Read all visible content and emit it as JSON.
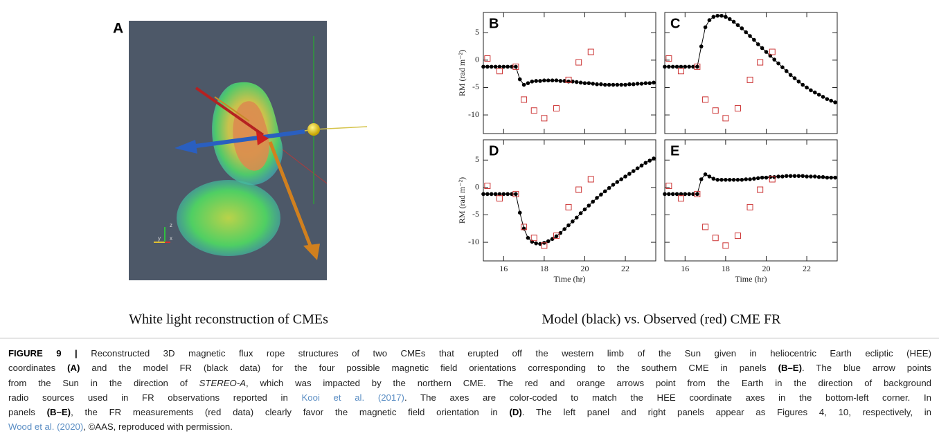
{
  "panel_a": {
    "label": "A",
    "triad": [
      "z",
      "y",
      "x"
    ],
    "subtitle": "White light reconstruction of CMEs"
  },
  "right_subtitle": "Model (black) vs. Observed (red) CME FR",
  "chart_data": [
    {
      "type": "line",
      "label": "B",
      "ylabel": "RM (rad m⁻²)",
      "xlim": [
        15,
        23.5
      ],
      "ylim": [
        -13.4,
        8.7
      ],
      "xticks": [
        16,
        18,
        20,
        22
      ],
      "yticks": [
        5,
        0,
        -5,
        -10
      ],
      "show_xtick_labels": false,
      "show_ytick_labels": true,
      "series": [
        {
          "color": "#000000",
          "marker": "circle",
          "line": true,
          "x": [
            15,
            15.2,
            15.4,
            15.6,
            15.8,
            16,
            16.2,
            16.4,
            16.6,
            16.8,
            17,
            17.2,
            17.4,
            17.6,
            17.8,
            18,
            18.2,
            18.4,
            18.6,
            18.8,
            19,
            19.2,
            19.4,
            19.6,
            19.8,
            20,
            20.2,
            20.4,
            20.6,
            20.8,
            21,
            21.2,
            21.4,
            21.6,
            21.8,
            22,
            22.2,
            22.4,
            22.6,
            22.8,
            23,
            23.2,
            23.4
          ],
          "values": [
            -1.2,
            -1.2,
            -1.2,
            -1.2,
            -1.2,
            -1.2,
            -1.2,
            -1.2,
            -1.2,
            -3.5,
            -4.5,
            -4.2,
            -3.9,
            -3.8,
            -3.8,
            -3.7,
            -3.7,
            -3.7,
            -3.7,
            -3.8,
            -3.8,
            -3.9,
            -3.9,
            -4.0,
            -4.1,
            -4.2,
            -4.2,
            -4.3,
            -4.4,
            -4.4,
            -4.5,
            -4.5,
            -4.5,
            -4.5,
            -4.5,
            -4.5,
            -4.4,
            -4.4,
            -4.3,
            -4.3,
            -4.2,
            -4.2,
            -4.1
          ]
        },
        {
          "color": "#cc3333",
          "marker": "square",
          "line": false,
          "x": [
            15.2,
            15.8,
            16.6,
            17.0,
            17.5,
            18.0,
            18.6,
            19.2,
            19.7,
            20.3
          ],
          "values": [
            0.3,
            -2.0,
            -1.2,
            -7.2,
            -9.2,
            -10.6,
            -8.8,
            -3.6,
            -0.4,
            1.5
          ]
        }
      ]
    },
    {
      "type": "line",
      "label": "C",
      "xlim": [
        15,
        23.5
      ],
      "ylim": [
        -13.4,
        8.7
      ],
      "xticks": [
        16,
        18,
        20,
        22
      ],
      "yticks": [
        5,
        0,
        -5,
        -10
      ],
      "show_xtick_labels": false,
      "show_ytick_labels": false,
      "series": [
        {
          "color": "#000000",
          "marker": "circle",
          "line": true,
          "x": [
            15,
            15.2,
            15.4,
            15.6,
            15.8,
            16,
            16.2,
            16.4,
            16.6,
            16.8,
            17,
            17.2,
            17.4,
            17.6,
            17.8,
            18,
            18.2,
            18.4,
            18.6,
            18.8,
            19,
            19.2,
            19.4,
            19.6,
            19.8,
            20,
            20.2,
            20.4,
            20.6,
            20.8,
            21,
            21.2,
            21.4,
            21.6,
            21.8,
            22,
            22.2,
            22.4,
            22.6,
            22.8,
            23,
            23.2,
            23.4
          ],
          "values": [
            -1.2,
            -1.2,
            -1.2,
            -1.2,
            -1.2,
            -1.2,
            -1.2,
            -1.2,
            -1.2,
            2.5,
            6.0,
            7.3,
            7.9,
            8.1,
            8.1,
            7.9,
            7.5,
            7.0,
            6.4,
            5.8,
            5.1,
            4.4,
            3.7,
            2.9,
            2.2,
            1.5,
            0.8,
            0.1,
            -0.6,
            -1.3,
            -2.0,
            -2.7,
            -3.3,
            -3.9,
            -4.5,
            -5.0,
            -5.5,
            -5.9,
            -6.3,
            -6.7,
            -7.1,
            -7.4,
            -7.7
          ]
        },
        {
          "color": "#cc3333",
          "marker": "square",
          "line": false,
          "x": [
            15.2,
            15.8,
            16.6,
            17.0,
            17.5,
            18.0,
            18.6,
            19.2,
            19.7,
            20.3
          ],
          "values": [
            0.3,
            -2.0,
            -1.2,
            -7.2,
            -9.2,
            -10.6,
            -8.8,
            -3.6,
            -0.4,
            1.5
          ]
        }
      ]
    },
    {
      "type": "line",
      "label": "D",
      "ylabel": "RM (rad m⁻²)",
      "xlabel": "Time (hr)",
      "xlim": [
        15,
        23.5
      ],
      "ylim": [
        -13.4,
        8.7
      ],
      "xticks": [
        16,
        18,
        20,
        22
      ],
      "yticks": [
        5,
        0,
        -5,
        -10
      ],
      "show_xtick_labels": true,
      "show_ytick_labels": true,
      "series": [
        {
          "color": "#000000",
          "marker": "circle",
          "line": true,
          "x": [
            15,
            15.2,
            15.4,
            15.6,
            15.8,
            16,
            16.2,
            16.4,
            16.6,
            16.8,
            17,
            17.2,
            17.4,
            17.6,
            17.8,
            18,
            18.2,
            18.4,
            18.6,
            18.8,
            19,
            19.2,
            19.4,
            19.6,
            19.8,
            20,
            20.2,
            20.4,
            20.6,
            20.8,
            21,
            21.2,
            21.4,
            21.6,
            21.8,
            22,
            22.2,
            22.4,
            22.6,
            22.8,
            23,
            23.2,
            23.4
          ],
          "values": [
            -1.2,
            -1.2,
            -1.2,
            -1.2,
            -1.2,
            -1.2,
            -1.2,
            -1.2,
            -1.2,
            -4.6,
            -7.5,
            -9.2,
            -9.9,
            -10.2,
            -10.3,
            -10.1,
            -9.8,
            -9.4,
            -8.9,
            -8.3,
            -7.6,
            -6.9,
            -6.2,
            -5.5,
            -4.7,
            -4.0,
            -3.3,
            -2.6,
            -1.9,
            -1.3,
            -0.7,
            -0.1,
            0.5,
            1.0,
            1.5,
            2.0,
            2.5,
            3.0,
            3.5,
            4.0,
            4.5,
            4.9,
            5.3
          ]
        },
        {
          "color": "#cc3333",
          "marker": "square",
          "line": false,
          "x": [
            15.2,
            15.8,
            16.6,
            17.0,
            17.5,
            18.0,
            18.6,
            19.2,
            19.7,
            20.3
          ],
          "values": [
            0.3,
            -2.0,
            -1.2,
            -7.2,
            -9.2,
            -10.6,
            -8.8,
            -3.6,
            -0.4,
            1.5
          ]
        }
      ]
    },
    {
      "type": "line",
      "label": "E",
      "xlabel": "Time (hr)",
      "xlim": [
        15,
        23.5
      ],
      "ylim": [
        -13.4,
        8.7
      ],
      "xticks": [
        16,
        18,
        20,
        22
      ],
      "yticks": [
        5,
        0,
        -5,
        -10
      ],
      "show_xtick_labels": true,
      "show_ytick_labels": false,
      "series": [
        {
          "color": "#000000",
          "marker": "circle",
          "line": true,
          "x": [
            15,
            15.2,
            15.4,
            15.6,
            15.8,
            16,
            16.2,
            16.4,
            16.6,
            16.8,
            17,
            17.2,
            17.4,
            17.6,
            17.8,
            18,
            18.2,
            18.4,
            18.6,
            18.8,
            19,
            19.2,
            19.4,
            19.6,
            19.8,
            20,
            20.2,
            20.4,
            20.6,
            20.8,
            21,
            21.2,
            21.4,
            21.6,
            21.8,
            22,
            22.2,
            22.4,
            22.6,
            22.8,
            23,
            23.2,
            23.4
          ],
          "values": [
            -1.2,
            -1.2,
            -1.2,
            -1.2,
            -1.2,
            -1.2,
            -1.2,
            -1.2,
            -1.2,
            1.5,
            2.4,
            2.0,
            1.6,
            1.4,
            1.4,
            1.4,
            1.4,
            1.4,
            1.4,
            1.4,
            1.5,
            1.5,
            1.6,
            1.7,
            1.8,
            1.8,
            1.9,
            1.9,
            2.0,
            2.0,
            2.1,
            2.1,
            2.1,
            2.1,
            2.1,
            2.0,
            2.0,
            2.0,
            1.9,
            1.9,
            1.8,
            1.8,
            1.8
          ]
        },
        {
          "color": "#cc3333",
          "marker": "square",
          "line": false,
          "x": [
            15.2,
            15.8,
            16.6,
            17.0,
            17.5,
            18.0,
            18.6,
            19.2,
            19.7,
            20.3
          ],
          "values": [
            0.3,
            -2.0,
            -1.2,
            -7.2,
            -9.2,
            -10.6,
            -8.8,
            -3.6,
            -0.4,
            1.5
          ]
        }
      ]
    }
  ],
  "caption": {
    "lines": [
      [
        {
          "text": "FIGURE 9 |",
          "style": "bold"
        },
        {
          "text": " Reconstructed 3D magnetic flux rope structures of two CMEs that erupted off the western limb of the Sun given in heliocentric Earth ecliptic (HEE)"
        }
      ],
      [
        {
          "text": "coordinates "
        },
        {
          "text": "(A)",
          "style": "bold"
        },
        {
          "text": " and the model FR (black data) for the four possible magnetic field orientations corresponding to the southern CME in panels "
        },
        {
          "text": "(B–E)",
          "style": "bold"
        },
        {
          "text": ". The blue arrow points"
        }
      ],
      [
        {
          "text": "from the Sun in the direction of "
        },
        {
          "text": "STEREO-A",
          "style": "italic"
        },
        {
          "text": ", which was impacted by the northern CME. The red and orange arrows point from the Earth in the direction of background"
        }
      ],
      [
        {
          "text": "radio sources used in FR observations reported in "
        },
        {
          "text": "Kooi et al. (2017)",
          "style": "link"
        },
        {
          "text": ". The axes are color-coded to match the HEE coordinate axes in the bottom-left corner. In"
        }
      ],
      [
        {
          "text": "panels "
        },
        {
          "text": "(B–E)",
          "style": "bold"
        },
        {
          "text": ", the FR measurements (red data) clearly favor the magnetic field orientation in "
        },
        {
          "text": "(D)",
          "style": "bold"
        },
        {
          "text": ". The left panel and right panels appear as Figures 4, 10, respectively, in"
        }
      ],
      [
        {
          "text": "Wood et al. (2020)",
          "style": "link"
        },
        {
          "text": ", ©AAS, reproduced with permission."
        }
      ]
    ]
  }
}
